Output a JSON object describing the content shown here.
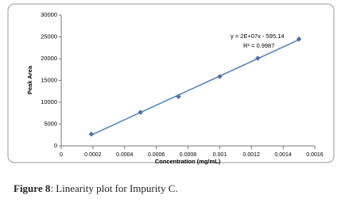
{
  "chart_data": {
    "type": "scatter",
    "x_label": "Concentration (mg/mL)",
    "y_label": "Peak Area",
    "x": [
      0.00019,
      0.0005,
      0.00074,
      0.001,
      0.00124,
      0.0015
    ],
    "values": [
      2700,
      7700,
      11300,
      15900,
      20100,
      24500
    ],
    "color": "#4a6fa5",
    "trendline_color": "#4f81bd",
    "xlim": [
      0,
      0.0016
    ],
    "xticks": [
      0,
      0.0002,
      0.0004,
      0.0006,
      0.0008,
      0.001,
      0.0012,
      0.0014,
      0.0016
    ],
    "ylim": [
      0,
      30000
    ],
    "yticks": [
      0,
      5000,
      10000,
      15000,
      20000,
      25000,
      30000
    ],
    "annotations": [
      "y = 2E+07x - 595.14",
      "R² = 0.9987"
    ]
  },
  "caption": {
    "label": "Figure 8",
    "text": ": Linearity plot for Impurity C."
  }
}
